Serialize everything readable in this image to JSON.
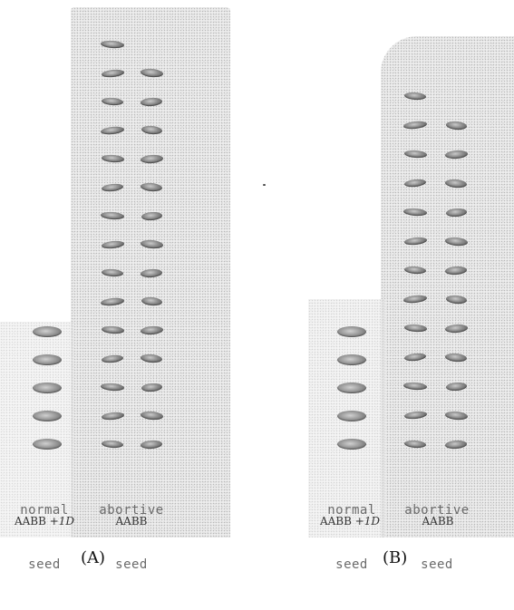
{
  "panels": [
    {
      "id": "A",
      "label": "(A)",
      "normal_caption_line1": "normal",
      "normal_caption_line2": "seed",
      "abortive_caption_line1": "abortive",
      "abortive_caption_line2": "seed",
      "normal_genotype_base": "AABB",
      "normal_genotype_addition": "+1D",
      "abortive_genotype": "AABB",
      "normal_seed_count": 5,
      "abortive_left_column_count": 15,
      "abortive_right_column_count": 14
    },
    {
      "id": "B",
      "label": "(B)",
      "normal_caption_line1": "normal",
      "normal_caption_line2": "seed",
      "abortive_caption_line1": "abortive",
      "abortive_caption_line2": "seed",
      "normal_genotype_base": "AABB",
      "normal_genotype_addition": "+1D",
      "abortive_genotype": "AABB",
      "normal_seed_count": 5,
      "abortive_left_column_count": 13,
      "abortive_right_column_count": 12
    }
  ],
  "colors": {
    "background": "#ffffff",
    "stipple": "#ededed",
    "seed": "#6e6e6e"
  }
}
